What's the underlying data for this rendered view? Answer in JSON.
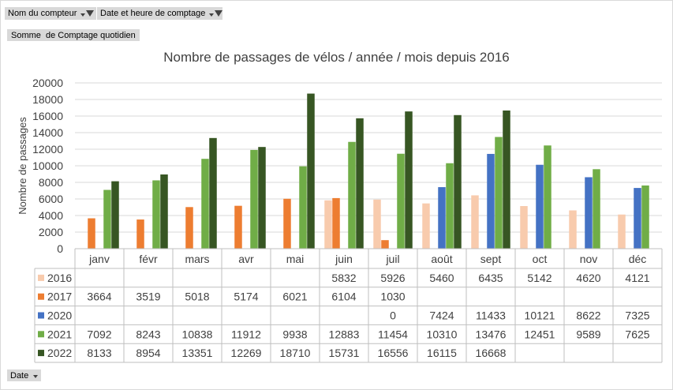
{
  "filters": {
    "counter_name": "Nom du compteur",
    "datetime": "Date et heure de comptage",
    "value_field": "Somme  de Comptage quotidien",
    "date_field": "Date"
  },
  "colors": {
    "2016": "#f8cbad",
    "2017": "#ed7d31",
    "2020": "#4472c4",
    "2021": "#70ad47",
    "2022": "#375623",
    "grid": "#d9d9d9",
    "text": "#404040"
  },
  "chart_data": {
    "type": "bar",
    "title": "Nombre de passages de vélos / année / mois depuis 2016",
    "ylabel": "Nombre de passages",
    "xlabel": "",
    "ylim": [
      0,
      20000
    ],
    "yticks": [
      0,
      2000,
      4000,
      6000,
      8000,
      10000,
      12000,
      14000,
      16000,
      18000,
      20000
    ],
    "grid": true,
    "categories": [
      "janv",
      "févr",
      "mars",
      "avr",
      "mai",
      "juin",
      "juil",
      "août",
      "sept",
      "oct",
      "nov",
      "déc"
    ],
    "series": [
      {
        "name": "2016",
        "values": [
          null,
          null,
          null,
          null,
          null,
          5832,
          5926,
          5460,
          6435,
          5142,
          4620,
          4121
        ]
      },
      {
        "name": "2017",
        "values": [
          3664,
          3519,
          5018,
          5174,
          6021,
          6104,
          1030,
          null,
          null,
          null,
          null,
          null
        ]
      },
      {
        "name": "2020",
        "values": [
          null,
          null,
          null,
          null,
          null,
          null,
          0,
          7424,
          11433,
          10121,
          8622,
          7325
        ]
      },
      {
        "name": "2021",
        "values": [
          7092,
          8243,
          10838,
          11912,
          9938,
          12883,
          11454,
          10310,
          13476,
          12451,
          9589,
          7625
        ]
      },
      {
        "name": "2022",
        "values": [
          8133,
          8954,
          13351,
          12269,
          18710,
          15731,
          16556,
          16115,
          16668,
          null,
          null,
          null
        ]
      }
    ]
  }
}
